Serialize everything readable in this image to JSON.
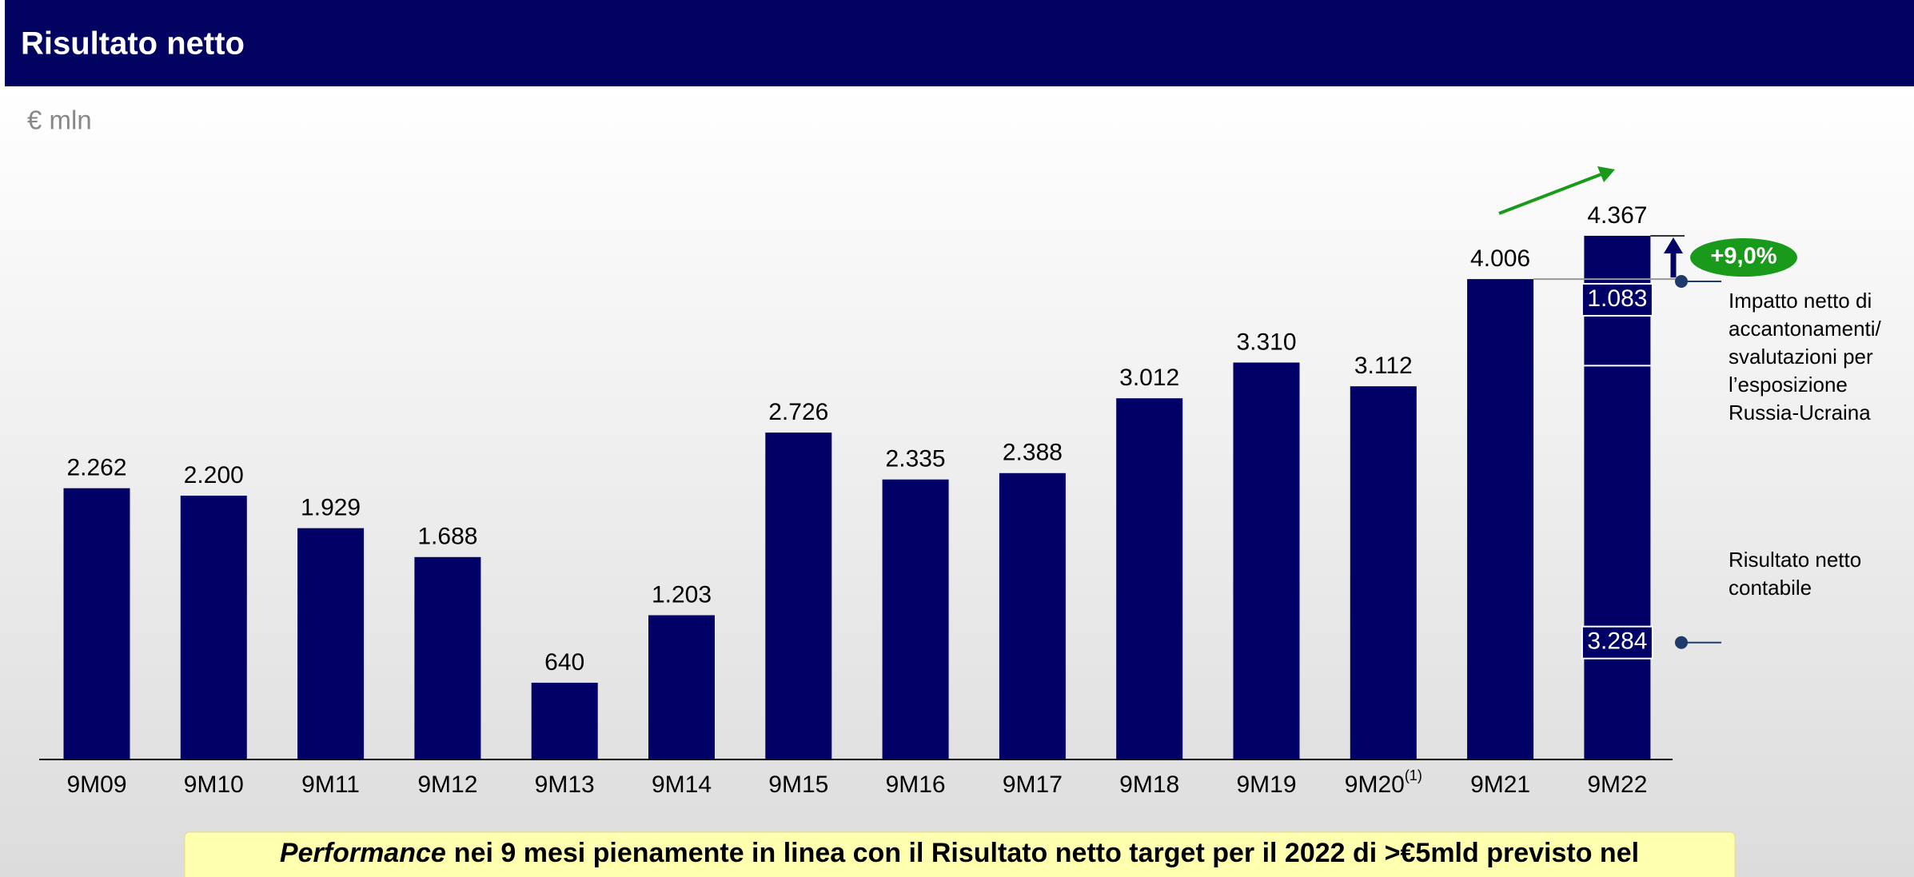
{
  "header": {
    "title": "Risultato netto"
  },
  "chart_data": {
    "type": "bar",
    "unit": "€ mln",
    "categories": [
      "9M09",
      "9M10",
      "9M11",
      "9M12",
      "9M13",
      "9M14",
      "9M15",
      "9M16",
      "9M17",
      "9M18",
      "9M19",
      "9M20",
      "9M21",
      "9M22"
    ],
    "category_superscripts": [
      null,
      null,
      null,
      null,
      null,
      null,
      null,
      null,
      null,
      null,
      null,
      "(1)",
      null,
      null
    ],
    "series": [
      {
        "name": "Risultato netto contabile",
        "color": "#000066",
        "values": [
          2262,
          2200,
          1929,
          1688,
          640,
          1203,
          2726,
          2335,
          2388,
          3012,
          3310,
          3112,
          4006,
          3284
        ],
        "value_labels": [
          "2.262",
          "2.200",
          "1.929",
          "1.688",
          "640",
          "1.203",
          "2.726",
          "2.335",
          "2.388",
          "3.012",
          "3.310",
          "3.112",
          "4.006",
          "3.284"
        ]
      },
      {
        "name": "Impatto netto di accantonamenti/ svalutazioni per l’esposizione Russia-Ucraina",
        "color": "#000066",
        "values": [
          null,
          null,
          null,
          null,
          null,
          null,
          null,
          null,
          null,
          null,
          null,
          null,
          null,
          1083
        ],
        "value_labels": [
          null,
          null,
          null,
          null,
          null,
          null,
          null,
          null,
          null,
          null,
          null,
          null,
          null,
          "1.083"
        ]
      }
    ],
    "total_label": "4.367",
    "growth_label": "+9,0%",
    "ylim": [
      0,
      5000
    ]
  },
  "banner": {
    "emphasis": "Performance",
    "text": "nei 9 mesi pienamente in linea con il Risultato netto target per il 2022 di >€5mld previsto nel"
  }
}
